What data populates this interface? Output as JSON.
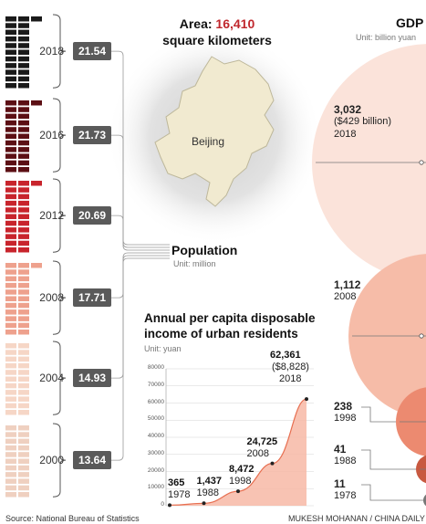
{
  "area": {
    "prefix": "Area:",
    "value": "16,410",
    "unit": "square kilometers",
    "map_label": "Beijing"
  },
  "population": {
    "title": "Population",
    "unit": "Unit: million"
  },
  "gdp": {
    "title": "GDP",
    "unit": "Unit: billion yuan"
  },
  "income": {
    "title_line1": "Annual per capita disposable",
    "title_line2": "income of urban residents",
    "unit": "Unit: yuan"
  },
  "chart_data": [
    {
      "type": "bar",
      "title": "Population",
      "ylabel": "Unit: million",
      "categories": [
        "2018",
        "2016",
        "2012",
        "2008",
        "2004",
        "2000"
      ],
      "values": [
        21.54,
        21.73,
        20.69,
        17.71,
        14.93,
        13.64
      ],
      "value_labels": [
        "21.54",
        "21.73",
        "20.69",
        "17.71",
        "14.93",
        "13.64"
      ],
      "colors": [
        "#1a1a1a",
        "#5c0f14",
        "#c8242c",
        "#eea18d",
        "#f6d6c6",
        "#efd0c0"
      ]
    },
    {
      "type": "scatter",
      "title": "GDP",
      "ylabel": "Unit: billion yuan",
      "categories": [
        "2018",
        "2008",
        "1998",
        "1988",
        "1978"
      ],
      "values": [
        3032,
        1112,
        238,
        41,
        11
      ],
      "value_labels": [
        "3,032",
        "1,112",
        "238",
        "41",
        "11"
      ],
      "notes": [
        "($429 billion)",
        "",
        "",
        "",
        ""
      ],
      "colors": [
        "#fbe3da",
        "#f6bca8",
        "#ec8a70",
        "#c85940",
        "#777777"
      ]
    },
    {
      "type": "area",
      "title": "Annual per capita disposable income of urban residents",
      "ylabel": "Unit: yuan",
      "x": [
        1978,
        1988,
        1998,
        2008,
        2018
      ],
      "values": [
        365,
        1437,
        8472,
        24725,
        62361
      ],
      "value_labels": [
        "365",
        "1,437",
        "8,472",
        "24,725",
        "62,361"
      ],
      "notes": [
        "",
        "",
        "",
        "",
        "($8,828)"
      ],
      "ylim": [
        0,
        80000
      ],
      "yticks": [
        0,
        10000,
        20000,
        30000,
        40000,
        50000,
        60000,
        70000,
        80000
      ],
      "grid": true
    }
  ],
  "footer": {
    "source": "Source: National Bureau of Statistics",
    "credit": "MUKESH MOHANAN / CHINA DAILY"
  }
}
